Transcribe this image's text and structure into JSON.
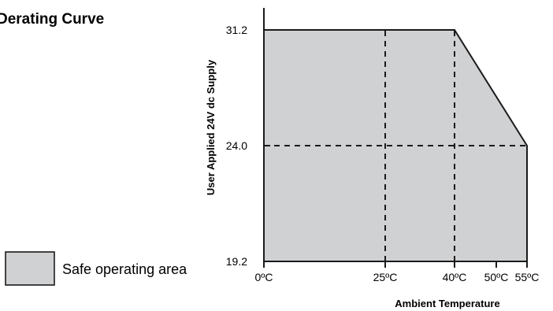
{
  "chart_data": {
    "type": "area",
    "title": "Derating Curve",
    "xlabel": "Ambient Temperature",
    "ylabel": "User Applied 24V dc Supply",
    "x_ticks": [
      {
        "value": 0,
        "label": "0ºC"
      },
      {
        "value": 25,
        "label": "25ºC"
      },
      {
        "value": 40,
        "label": "40ºC"
      },
      {
        "value": 50,
        "label": "50ºC"
      },
      {
        "value": 55,
        "label": "55ºC"
      }
    ],
    "y_ticks": [
      {
        "value": 19.2,
        "label": "19.2"
      },
      {
        "value": 24.0,
        "label": "24.0"
      },
      {
        "value": 31.2,
        "label": "31.2"
      }
    ],
    "xlim": [
      0,
      55
    ],
    "ylim": [
      19.2,
      31.2
    ],
    "series": [
      {
        "name": "Safe operating area",
        "x": [
          0,
          40,
          55
        ],
        "y": [
          31.2,
          31.2,
          24.0
        ]
      }
    ],
    "reference_lines": {
      "vertical_x": [
        25,
        40
      ],
      "horizontal_y": [
        24.0
      ]
    },
    "legend": {
      "label": "Safe operating area",
      "placement": "bottom-left"
    },
    "colors": {
      "fill": "#d0d1d3",
      "line": "#1a1a1a"
    }
  }
}
